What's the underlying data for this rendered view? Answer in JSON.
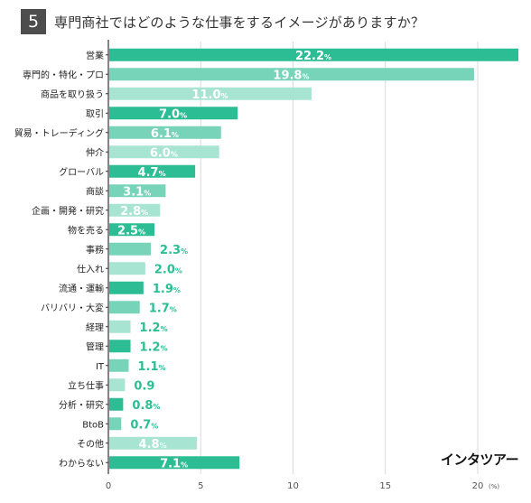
{
  "header": {
    "number": "5",
    "question": "専門商社ではどのような仕事をするイメージがありますか？"
  },
  "logo": "インタツアー",
  "unit_label": "(%)",
  "colors": {
    "dark": "#2dbd94",
    "mid": "#77d4b8",
    "light": "#a8e4d2",
    "grid": "#d9d9d9",
    "axis": "#333333"
  },
  "chart_data": {
    "type": "bar",
    "orientation": "horizontal",
    "categories": [
      "営業",
      "専門的・特化・プロ",
      "商品を取り扱う",
      "取引",
      "貿易・トレーディング",
      "仲介",
      "グローバル",
      "商談",
      "企画・開発・研究",
      "物を売る",
      "事務",
      "仕入れ",
      "流通・運輸",
      "バリバリ・大変",
      "経理",
      "管理",
      "IT",
      "立ち仕事",
      "分析・研究",
      "BtoB",
      "その他",
      "わからない"
    ],
    "values": [
      22.2,
      19.8,
      11.0,
      7.0,
      6.1,
      6.0,
      4.7,
      3.1,
      2.8,
      2.5,
      2.3,
      2.0,
      1.9,
      1.7,
      1.2,
      1.2,
      1.1,
      0.9,
      0.8,
      0.7,
      4.8,
      7.1
    ],
    "labels": [
      "22.2%",
      "19.8%",
      "11.0%",
      "7.0%",
      "6.1%",
      "6.0%",
      "4.7%",
      "3.1%",
      "2.8%",
      "2.5%",
      "2.3%",
      "2.0%",
      "1.9%",
      "1.7%",
      "1.2%",
      "1.2%",
      "1.1%",
      "0.9",
      "0.8%",
      "0.7%",
      "4.8%",
      "7.1%"
    ],
    "shades": [
      "dark",
      "mid",
      "light",
      "dark",
      "mid",
      "light",
      "dark",
      "mid",
      "light",
      "dark",
      "mid",
      "light",
      "dark",
      "mid",
      "light",
      "dark",
      "mid",
      "light",
      "dark",
      "mid",
      "light",
      "dark"
    ],
    "xticks": [
      0,
      5,
      10,
      15,
      20
    ],
    "xlim": [
      0,
      22.2
    ],
    "grid": true
  }
}
